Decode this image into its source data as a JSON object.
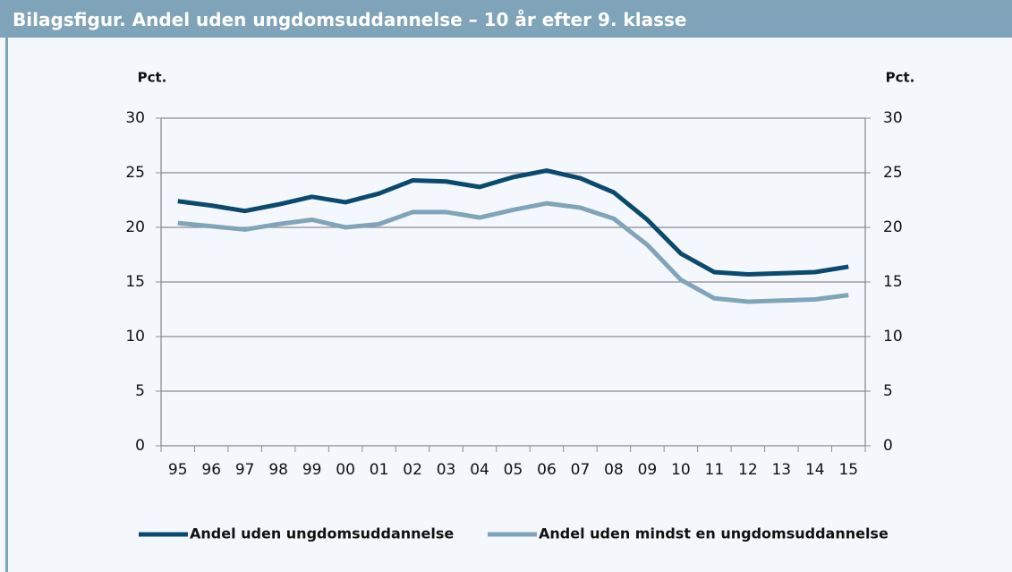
{
  "chart_data": {
    "type": "line",
    "title": "Bilagsfigur. Andel uden ungdomsuddannelse – 10 år efter 9. klasse",
    "ylabel": "Pct.",
    "y2label": "Pct.",
    "categories": [
      "95",
      "96",
      "97",
      "98",
      "99",
      "00",
      "01",
      "02",
      "03",
      "04",
      "05",
      "06",
      "07",
      "08",
      "09",
      "10",
      "11",
      "12",
      "13",
      "14",
      "15"
    ],
    "series": [
      {
        "name": "Andel uden ungdomsuddannelse",
        "color": "#0b4a6f",
        "values": [
          22.4,
          22.0,
          21.5,
          22.1,
          22.8,
          22.3,
          23.1,
          24.3,
          24.2,
          23.7,
          24.6,
          25.2,
          24.5,
          23.2,
          20.7,
          17.6,
          15.9,
          15.7,
          15.8,
          15.9,
          16.4
        ]
      },
      {
        "name": "Andel uden mindst en ungdomsuddannelse",
        "color": "#80a4ba",
        "values": [
          20.4,
          20.1,
          19.8,
          20.3,
          20.7,
          20.0,
          20.3,
          21.4,
          21.4,
          20.9,
          21.6,
          22.2,
          21.8,
          20.8,
          18.4,
          15.2,
          13.5,
          13.2,
          13.3,
          13.4,
          13.8
        ]
      }
    ],
    "ylim": [
      0,
      30
    ],
    "yticks": [
      0,
      5,
      10,
      15,
      20,
      25,
      30
    ],
    "y2lim": [
      0,
      30
    ],
    "y2ticks": [
      0,
      5,
      10,
      15,
      20,
      25,
      30
    ],
    "grid": true,
    "legend": "bottom"
  }
}
